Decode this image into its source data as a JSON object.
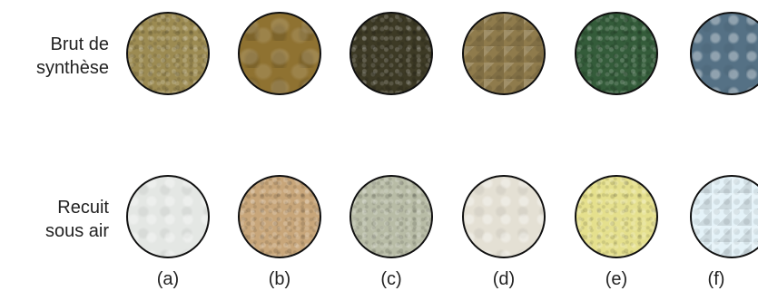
{
  "rows": {
    "top": {
      "line1": "Brut de",
      "line2": "synthèse"
    },
    "bottom": {
      "line1": "Recuit",
      "line2": "sous air"
    }
  },
  "samples": [
    {
      "label": "(a)",
      "raw_color": "#9c8b52",
      "annealed_color": "#e4e7e4"
    },
    {
      "label": "(b)",
      "raw_color": "#8f7231",
      "annealed_color": "#c8a67a"
    },
    {
      "label": "(c)",
      "raw_color": "#3d3a25",
      "annealed_color": "#b8bca6"
    },
    {
      "label": "(d)",
      "raw_color": "#8f7b4c",
      "annealed_color": "#e4e0d4"
    },
    {
      "label": "(e)",
      "raw_color": "#345c3a",
      "annealed_color": "#e5e08d"
    },
    {
      "label": "(f)",
      "raw_color": "#557185",
      "annealed_color": "#e4f2f8"
    }
  ]
}
